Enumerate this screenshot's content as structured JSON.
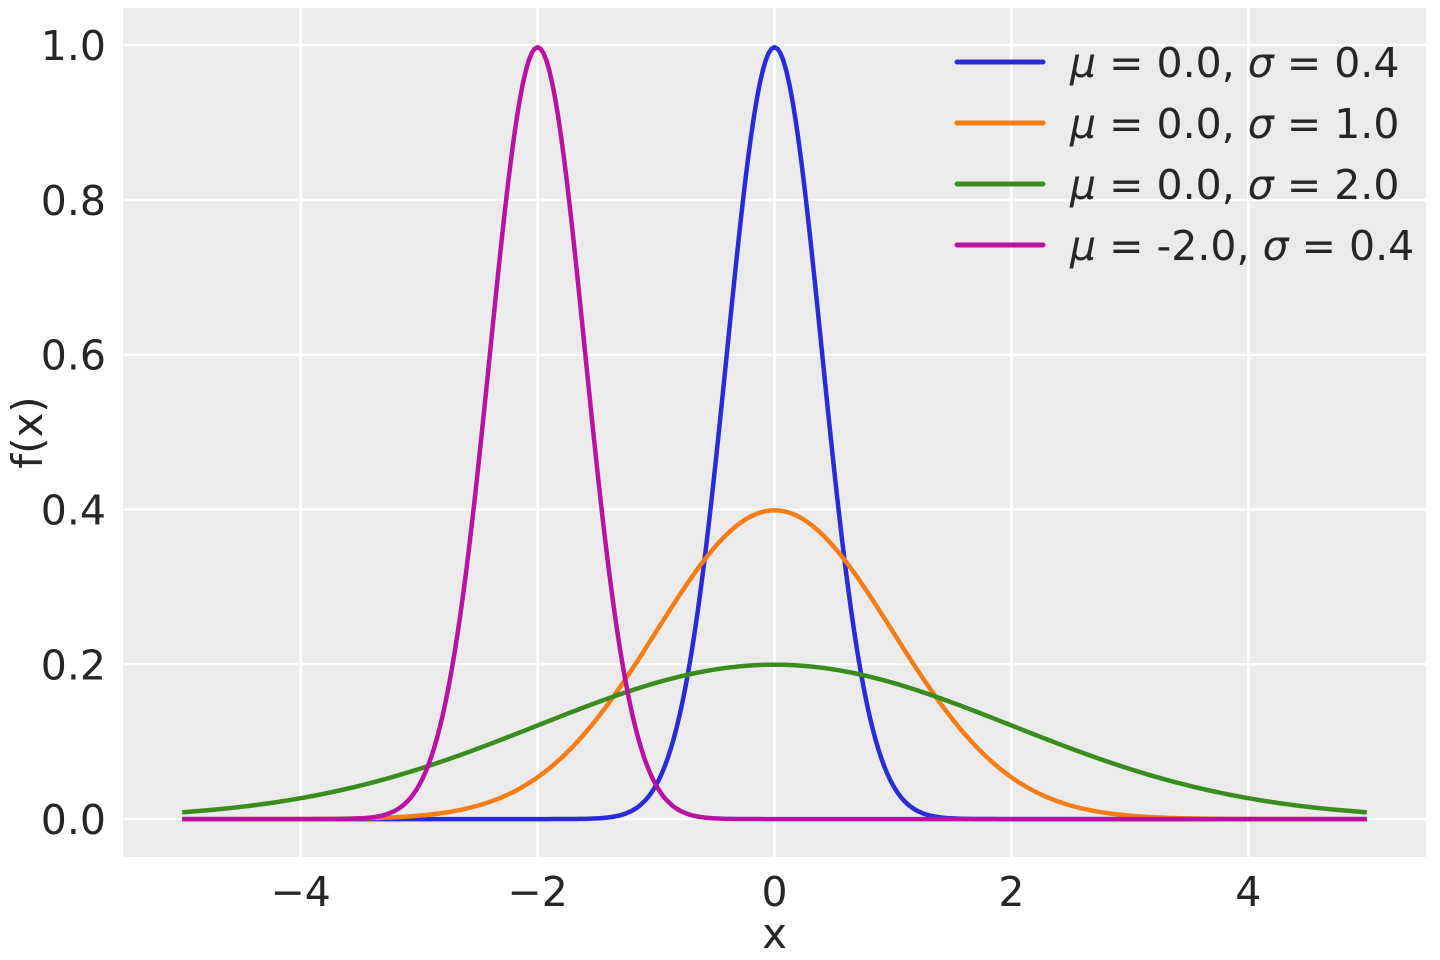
{
  "chart_data": {
    "type": "line",
    "xlabel": "x",
    "ylabel": "f(x)",
    "xlim": [
      -5.5,
      5.5
    ],
    "ylim": [
      -0.049,
      1.048
    ],
    "x_data_range": [
      -5,
      5
    ],
    "x_ticks": [
      {
        "value": -4,
        "label": "−4"
      },
      {
        "value": -2,
        "label": "−2"
      },
      {
        "value": 0,
        "label": "0"
      },
      {
        "value": 2,
        "label": "2"
      },
      {
        "value": 4,
        "label": "4"
      }
    ],
    "y_ticks": [
      {
        "value": 0.0,
        "label": "0.0"
      },
      {
        "value": 0.2,
        "label": "0.2"
      },
      {
        "value": 0.4,
        "label": "0.4"
      },
      {
        "value": 0.6,
        "label": "0.6"
      },
      {
        "value": 0.8,
        "label": "0.8"
      },
      {
        "value": 1.0,
        "label": "1.0"
      }
    ],
    "grid": {
      "on": true,
      "color": "#ffffff"
    },
    "plot_background": "#ebebeb",
    "text_color": "#262626",
    "legend": {
      "position": "upper-right",
      "frame": false
    },
    "series": [
      {
        "label": "μ = 0.0, σ = 0.4",
        "mu": 0.0,
        "sigma": 0.4,
        "color": "#2b2bd5",
        "peak_y": 0.997
      },
      {
        "label": "μ = 0.0, σ = 1.0",
        "mu": 0.0,
        "sigma": 1.0,
        "color": "#f57d17",
        "peak_y": 0.399
      },
      {
        "label": "μ = 0.0, σ = 2.0",
        "mu": 0.0,
        "sigma": 2.0,
        "color": "#3a8c1e",
        "peak_y": 0.199
      },
      {
        "label": "μ = -2.0, σ = 0.4",
        "mu": -2.0,
        "sigma": 0.4,
        "color": "#b911a2",
        "peak_y": 0.997
      }
    ]
  }
}
